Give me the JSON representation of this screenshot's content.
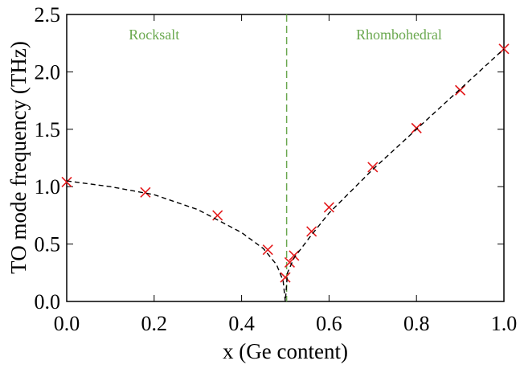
{
  "chart_data": {
    "type": "scatter",
    "xlabel": "x (Ge content)",
    "ylabel": "TO mode frequency (THz)",
    "xlim": [
      0,
      1
    ],
    "ylim": [
      0,
      2.5
    ],
    "xticks": [
      {
        "value": 0,
        "label": "0.0"
      },
      0.2,
      0.4,
      0.6,
      0.8,
      {
        "value": 1,
        "label": "1.0"
      }
    ],
    "yticks": [
      {
        "value": 0,
        "label": "0.0"
      },
      0.5,
      {
        "value": 1,
        "label": "1.0"
      },
      1.5,
      {
        "value": 2,
        "label": "2.0"
      },
      2.5
    ],
    "series": [
      {
        "color": "#e41a1c",
        "marker": "x",
        "x": [
          0,
          0.18,
          0.345,
          0.46,
          0.5,
          0.51,
          0.52,
          0.56,
          0.6,
          0.7,
          0.8,
          0.9,
          1.0
        ],
        "values": [
          1.04,
          0.95,
          0.75,
          0.45,
          0.21,
          0.34,
          0.4,
          0.61,
          0.82,
          1.17,
          1.51,
          1.84,
          2.2
        ]
      },
      {
        "color": "#000000",
        "dash": true,
        "x": [
          0,
          0.1,
          0.2,
          0.3,
          0.4,
          0.45,
          0.48,
          0.495,
          0.5,
          0.505,
          0.52,
          0.56,
          0.6,
          0.7,
          0.8,
          0.9,
          1.0
        ],
        "values": [
          1.05,
          1.0,
          0.93,
          0.8,
          0.6,
          0.46,
          0.32,
          0.18,
          0,
          0.25,
          0.38,
          0.58,
          0.77,
          1.15,
          1.5,
          1.85,
          2.2
        ]
      }
    ],
    "vline": {
      "x": 0.503,
      "color": "#6aa84f"
    },
    "annotations": [
      "Rocksalt",
      "Rhombohedral"
    ]
  }
}
